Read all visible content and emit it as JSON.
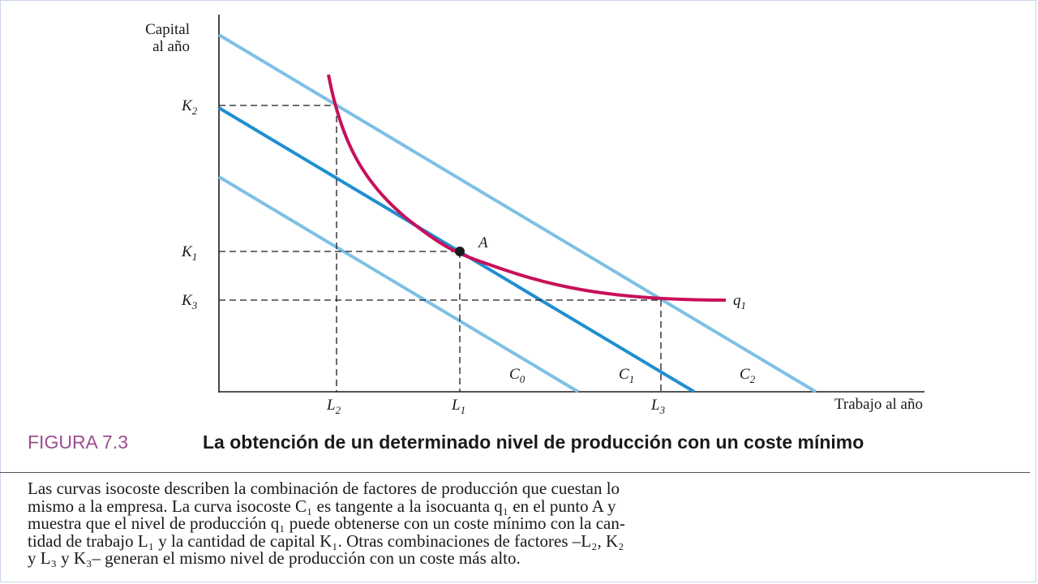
{
  "figure": {
    "number": "FIGURA 7.3",
    "title": "La obtención de un determinado nivel de producción con un coste mínimo"
  },
  "axes": {
    "y_label_line1": "Capital",
    "y_label_line2": "al año",
    "x_label": "Trabajo al año"
  },
  "ticks": {
    "y": [
      {
        "base": "K",
        "sub": "2"
      },
      {
        "base": "K",
        "sub": "1"
      },
      {
        "base": "K",
        "sub": "3"
      }
    ],
    "x": [
      {
        "base": "L",
        "sub": "2"
      },
      {
        "base": "L",
        "sub": "1"
      },
      {
        "base": "L",
        "sub": "3"
      }
    ]
  },
  "curves": {
    "isocost_labels": [
      {
        "base": "C",
        "sub": "0"
      },
      {
        "base": "C",
        "sub": "1"
      },
      {
        "base": "C",
        "sub": "2"
      }
    ],
    "isoquant_label": {
      "base": "q",
      "sub": "1"
    },
    "point_label": "A"
  },
  "colors": {
    "isocost_light": "#7ec0e6",
    "isocost_mid": "#1f8fd0",
    "isoquant": "#c8105a",
    "figure_number": "#9b4f8f"
  },
  "description": {
    "lines": [
      "Las curvas isocoste describen la combinación de factores de producción que cuestan lo",
      "mismo a la empresa. La curva isocoste C₁ es tangente a la isocuanta q₁ en el punto A y",
      "muestra que el nivel de producción q₁ puede obtenerse con un coste mínimo con la can-",
      "tidad de trabajo L₁ y la cantidad de capital K₁. Otras combinaciones de factores –L₂, K₂",
      "y L₃ y K₃– generan el mismo nivel de producción con un coste más alto."
    ]
  }
}
